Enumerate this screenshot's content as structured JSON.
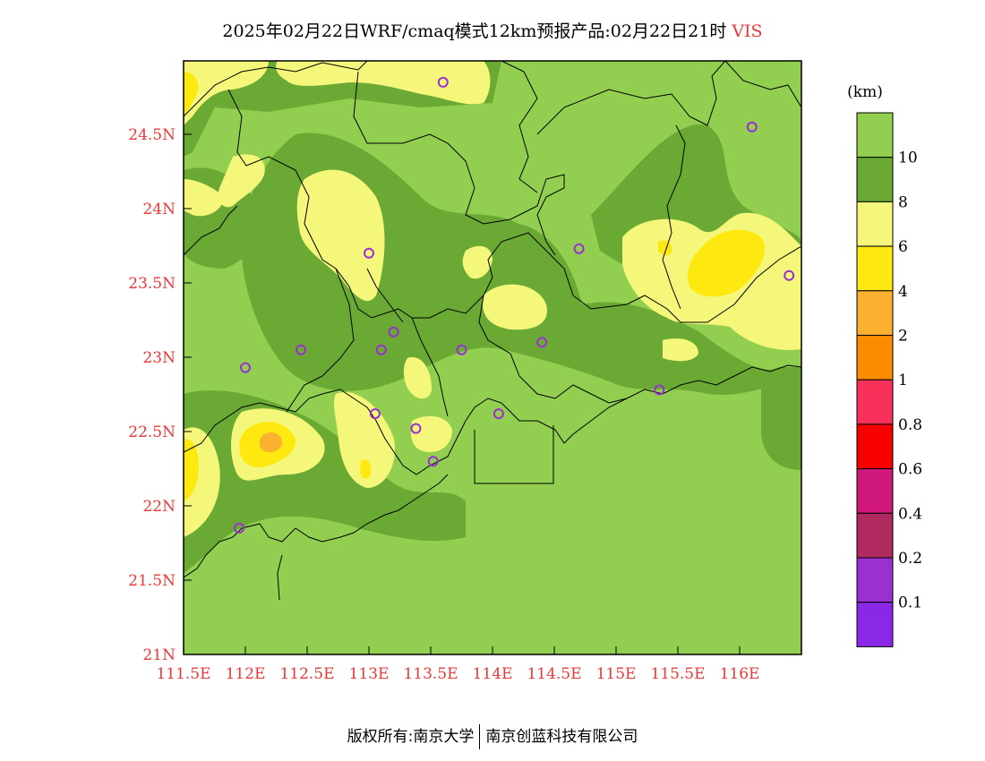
{
  "title": {
    "text": "2025年02月22日WRF/cmaq模式12km预报产品:02月22日21时",
    "variable": "VIS"
  },
  "map": {
    "lon_range": [
      111.5,
      116.5
    ],
    "lat_range": [
      21,
      25
    ],
    "lat_ticks": [
      "24.5N",
      "24N",
      "23.5N",
      "23N",
      "22.5N",
      "22N",
      "21.5N",
      "21N"
    ],
    "lon_ticks": [
      "111.5E",
      "112E",
      "112.5E",
      "113E",
      "113.5E",
      "114E",
      "114.5E",
      "115E",
      "115.5E",
      "116E"
    ],
    "stations": [
      [
        113.6,
        24.85
      ],
      [
        116.1,
        24.55
      ],
      [
        113.0,
        23.7
      ],
      [
        114.7,
        23.73
      ],
      [
        116.4,
        23.55
      ],
      [
        112.0,
        22.93
      ],
      [
        112.45,
        23.05
      ],
      [
        113.1,
        23.05
      ],
      [
        113.2,
        23.17
      ],
      [
        113.75,
        23.05
      ],
      [
        114.4,
        23.1
      ],
      [
        115.35,
        22.78
      ],
      [
        113.05,
        22.62
      ],
      [
        113.38,
        22.52
      ],
      [
        114.05,
        22.62
      ],
      [
        113.52,
        22.3
      ],
      [
        111.95,
        21.85
      ]
    ],
    "colors": {
      "gt10": "#92ce50",
      "8to10": "#6aaa34",
      "6to8": "#f5f77a",
      "4to6": "#fde810",
      "2to4": "#fbb030",
      "station": "#9b30d0",
      "boundary": "#000000"
    }
  },
  "colorbar": {
    "unit": "(km)",
    "labels": [
      "10",
      "8",
      "6",
      "4",
      "2",
      "1",
      "0.8",
      "0.6",
      "0.4",
      "0.2",
      "0.1"
    ],
    "colors": [
      "#92ce50",
      "#6aaa34",
      "#f5f77a",
      "#fde810",
      "#fbb030",
      "#fb8c00",
      "#f8305a",
      "#f80000",
      "#d0187c",
      "#b02a60",
      "#9b30d0",
      "#8b28e8"
    ]
  },
  "footer": {
    "left": "版权所有:南京大学",
    "right": "南京创蓝科技有限公司"
  }
}
